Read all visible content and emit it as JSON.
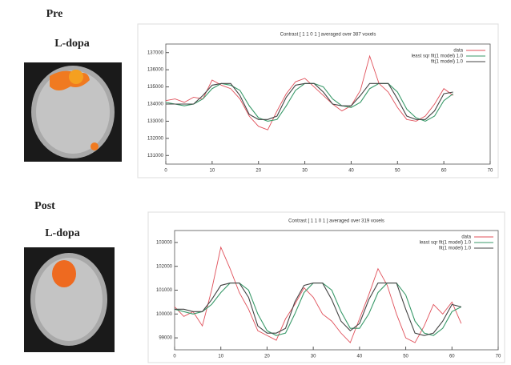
{
  "figure_labels": [
    "Pre",
    "L-dopa",
    "Post",
    "L-dopa"
  ],
  "chart_data": [
    {
      "type": "line",
      "title": "Contrast [ 1 1 0 1 ] averaged over 387 voxels",
      "x": [
        0,
        2,
        4,
        6,
        8,
        10,
        12,
        14,
        16,
        18,
        20,
        22,
        24,
        26,
        28,
        30,
        32,
        34,
        36,
        38,
        40,
        42,
        44,
        46,
        48,
        50,
        52,
        54,
        56,
        58,
        60,
        62
      ],
      "xlim": [
        0,
        70
      ],
      "xticks": [
        0,
        10,
        20,
        30,
        40,
        50,
        60,
        70
      ],
      "ylim": [
        130500,
        137500
      ],
      "yticks": [
        131000,
        132000,
        133000,
        134000,
        135000,
        136000,
        137000
      ],
      "legend": "upper right",
      "series": [
        {
          "name": "data",
          "color": "#e0505a",
          "values": [
            134200,
            134300,
            134100,
            134400,
            134300,
            135400,
            135100,
            134900,
            134300,
            133300,
            132700,
            132500,
            133600,
            134600,
            135300,
            135500,
            135000,
            134500,
            134000,
            133600,
            133900,
            134800,
            136800,
            135200,
            134700,
            133800,
            133100,
            133000,
            133300,
            134000,
            134900,
            134500
          ]
        },
        {
          "name": "least sqr fit(1 model) 1.0",
          "color": "#3a9a6a",
          "values": [
            134100,
            134000,
            133900,
            134000,
            134300,
            134900,
            135200,
            135100,
            134800,
            133900,
            133200,
            133000,
            133100,
            133900,
            134800,
            135200,
            135200,
            135000,
            134300,
            133900,
            133800,
            134100,
            134900,
            135200,
            135200,
            134700,
            133700,
            133200,
            133000,
            133300,
            134200,
            134600
          ]
        },
        {
          "name": "fit(1 model) 1.0",
          "color": "#444444",
          "values": [
            134000,
            134000,
            134000,
            134000,
            134500,
            135100,
            135200,
            135200,
            134500,
            133400,
            133100,
            133100,
            133300,
            134400,
            135100,
            135200,
            135200,
            134700,
            134000,
            133900,
            133900,
            134500,
            135200,
            135200,
            135200,
            134300,
            133300,
            133100,
            133100,
            133600,
            134600,
            134700
          ]
        }
      ]
    },
    {
      "type": "line",
      "title": "Contrast [ 1 1 0 1 ] averaged over 319 voxels",
      "x": [
        0,
        2,
        4,
        6,
        8,
        10,
        12,
        14,
        16,
        18,
        20,
        22,
        24,
        26,
        28,
        30,
        32,
        34,
        36,
        38,
        40,
        42,
        44,
        46,
        48,
        50,
        52,
        54,
        56,
        58,
        60,
        62
      ],
      "xlim": [
        0,
        70
      ],
      "xticks": [
        0,
        10,
        20,
        30,
        40,
        50,
        60,
        70
      ],
      "ylim": [
        98500,
        103500
      ],
      "yticks": [
        99000,
        100000,
        101000,
        102000,
        103000
      ],
      "legend": "upper right",
      "series": [
        {
          "name": "data",
          "color": "#e0505a",
          "values": [
            100300,
            99900,
            100100,
            99500,
            101000,
            102800,
            101900,
            100900,
            100200,
            99300,
            99100,
            98900,
            99800,
            100400,
            101100,
            100700,
            100000,
            99700,
            99200,
            98800,
            99800,
            100800,
            101900,
            101200,
            100000,
            99000,
            98800,
            99500,
            100400,
            100000,
            100500,
            99600
          ]
        },
        {
          "name": "least sqr fit(1 model) 1.0",
          "color": "#3a9a6a",
          "values": [
            100200,
            100100,
            100000,
            100100,
            100400,
            100900,
            101300,
            101300,
            101000,
            100000,
            99300,
            99100,
            99200,
            100000,
            100900,
            101300,
            101300,
            101000,
            100100,
            99400,
            99400,
            100000,
            100900,
            101300,
            101300,
            100800,
            99700,
            99200,
            99100,
            99400,
            100100,
            100300
          ]
        },
        {
          "name": "fit(1 model) 1.0",
          "color": "#444444",
          "values": [
            100200,
            100200,
            100100,
            100100,
            100600,
            101200,
            101300,
            101300,
            100700,
            99500,
            99200,
            99200,
            99400,
            100500,
            101200,
            101300,
            101300,
            100600,
            99700,
            99300,
            99600,
            100600,
            101300,
            101300,
            101300,
            100200,
            99200,
            99100,
            99200,
            99700,
            100400,
            100300
          ]
        }
      ]
    }
  ]
}
